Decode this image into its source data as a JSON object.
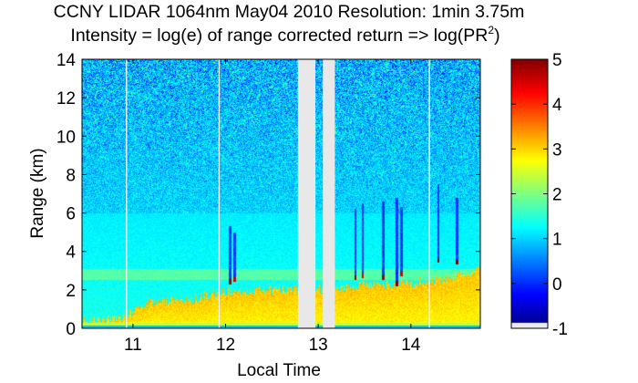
{
  "chart_data": {
    "type": "heatmap",
    "title_line1": "CCNY LIDAR 1064nm May04 2010 Resolution: 1min 3.75m",
    "title_line2": "Intensity = log(e) of range corrected return => log(PR",
    "title_superscript": "2",
    "title_line2_suffix": ")",
    "xlabel": "Local Time",
    "ylabel": "Range (km)",
    "xlim": [
      10.45,
      14.75
    ],
    "ylim": [
      0,
      14
    ],
    "xticks": [
      11,
      12,
      13,
      14
    ],
    "yticks": [
      0,
      2,
      4,
      6,
      8,
      10,
      12,
      14
    ],
    "colorbar": {
      "range": [
        -1,
        5
      ],
      "ticks": [
        -1,
        0,
        1,
        2,
        3,
        4,
        5
      ],
      "colormap": "jet"
    },
    "data_gaps": [
      {
        "x_start": 12.78,
        "x_end": 12.97
      },
      {
        "x_start": 13.05,
        "x_end": 13.18
      }
    ],
    "dropout_columns": [
      10.93,
      11.93,
      14.2
    ],
    "features": {
      "boundary_layer_top_km": [
        {
          "time": 10.45,
          "height": 0.35
        },
        {
          "time": 10.9,
          "height": 0.6
        },
        {
          "time": 11.2,
          "height": 1.35
        },
        {
          "time": 11.6,
          "height": 1.45
        },
        {
          "time": 12.0,
          "height": 1.9
        },
        {
          "time": 12.5,
          "height": 2.0
        },
        {
          "time": 12.78,
          "height": 2.0
        },
        {
          "time": 13.2,
          "height": 2.1
        },
        {
          "time": 13.6,
          "height": 2.25
        },
        {
          "time": 14.0,
          "height": 2.35
        },
        {
          "time": 14.4,
          "height": 2.6
        },
        {
          "time": 14.75,
          "height": 3.0
        }
      ],
      "residual_layer_km": [
        2.5,
        3.1
      ],
      "noise_onset_km": 6.0,
      "cloud_columns": [
        {
          "time": 12.05,
          "base_km": 2.3,
          "top_km": 5.3,
          "intensity": 4.8
        },
        {
          "time": 12.1,
          "base_km": 2.4,
          "top_km": 5.0,
          "intensity": 4.6
        },
        {
          "time": 13.4,
          "base_km": 2.5,
          "top_km": 6.2,
          "intensity": 5.0
        },
        {
          "time": 13.48,
          "base_km": 2.6,
          "top_km": 6.5,
          "intensity": 4.5
        },
        {
          "time": 13.7,
          "base_km": 2.5,
          "top_km": 6.6,
          "intensity": 4.8
        },
        {
          "time": 13.85,
          "base_km": 2.2,
          "top_km": 6.8,
          "intensity": 5.0
        },
        {
          "time": 13.9,
          "base_km": 2.7,
          "top_km": 6.3,
          "intensity": 4.5
        },
        {
          "time": 14.3,
          "base_km": 3.4,
          "top_km": 7.5,
          "intensity": 4.8
        },
        {
          "time": 14.5,
          "base_km": 3.3,
          "top_km": 6.8,
          "intensity": 5.0
        }
      ]
    }
  }
}
